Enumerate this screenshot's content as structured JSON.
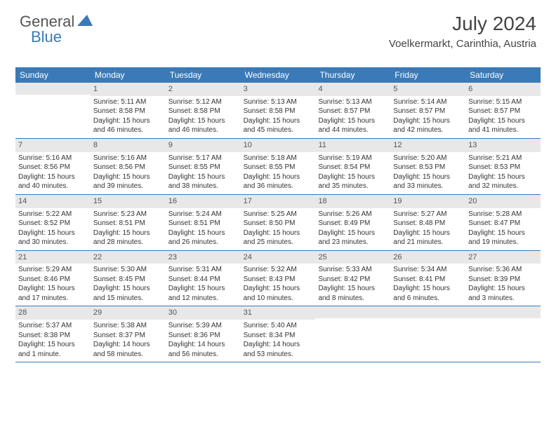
{
  "logo": {
    "text1": "General",
    "text2": "Blue"
  },
  "header": {
    "title": "July 2024",
    "location": "Voelkermarkt, Carinthia, Austria"
  },
  "colors": {
    "header_bar": "#3a7ab8",
    "header_text": "#ffffff",
    "daynum_bg": "#e8e8e8",
    "border": "#3a7ab8",
    "body_text": "#333333",
    "title_text": "#444444"
  },
  "weekdays": [
    "Sunday",
    "Monday",
    "Tuesday",
    "Wednesday",
    "Thursday",
    "Friday",
    "Saturday"
  ],
  "weeks": [
    [
      {
        "num": "",
        "sunrise": "",
        "sunset": "",
        "daylight": ""
      },
      {
        "num": "1",
        "sunrise": "Sunrise: 5:11 AM",
        "sunset": "Sunset: 8:58 PM",
        "daylight": "Daylight: 15 hours and 46 minutes."
      },
      {
        "num": "2",
        "sunrise": "Sunrise: 5:12 AM",
        "sunset": "Sunset: 8:58 PM",
        "daylight": "Daylight: 15 hours and 46 minutes."
      },
      {
        "num": "3",
        "sunrise": "Sunrise: 5:13 AM",
        "sunset": "Sunset: 8:58 PM",
        "daylight": "Daylight: 15 hours and 45 minutes."
      },
      {
        "num": "4",
        "sunrise": "Sunrise: 5:13 AM",
        "sunset": "Sunset: 8:57 PM",
        "daylight": "Daylight: 15 hours and 44 minutes."
      },
      {
        "num": "5",
        "sunrise": "Sunrise: 5:14 AM",
        "sunset": "Sunset: 8:57 PM",
        "daylight": "Daylight: 15 hours and 42 minutes."
      },
      {
        "num": "6",
        "sunrise": "Sunrise: 5:15 AM",
        "sunset": "Sunset: 8:57 PM",
        "daylight": "Daylight: 15 hours and 41 minutes."
      }
    ],
    [
      {
        "num": "7",
        "sunrise": "Sunrise: 5:16 AM",
        "sunset": "Sunset: 8:56 PM",
        "daylight": "Daylight: 15 hours and 40 minutes."
      },
      {
        "num": "8",
        "sunrise": "Sunrise: 5:16 AM",
        "sunset": "Sunset: 8:56 PM",
        "daylight": "Daylight: 15 hours and 39 minutes."
      },
      {
        "num": "9",
        "sunrise": "Sunrise: 5:17 AM",
        "sunset": "Sunset: 8:55 PM",
        "daylight": "Daylight: 15 hours and 38 minutes."
      },
      {
        "num": "10",
        "sunrise": "Sunrise: 5:18 AM",
        "sunset": "Sunset: 8:55 PM",
        "daylight": "Daylight: 15 hours and 36 minutes."
      },
      {
        "num": "11",
        "sunrise": "Sunrise: 5:19 AM",
        "sunset": "Sunset: 8:54 PM",
        "daylight": "Daylight: 15 hours and 35 minutes."
      },
      {
        "num": "12",
        "sunrise": "Sunrise: 5:20 AM",
        "sunset": "Sunset: 8:53 PM",
        "daylight": "Daylight: 15 hours and 33 minutes."
      },
      {
        "num": "13",
        "sunrise": "Sunrise: 5:21 AM",
        "sunset": "Sunset: 8:53 PM",
        "daylight": "Daylight: 15 hours and 32 minutes."
      }
    ],
    [
      {
        "num": "14",
        "sunrise": "Sunrise: 5:22 AM",
        "sunset": "Sunset: 8:52 PM",
        "daylight": "Daylight: 15 hours and 30 minutes."
      },
      {
        "num": "15",
        "sunrise": "Sunrise: 5:23 AM",
        "sunset": "Sunset: 8:51 PM",
        "daylight": "Daylight: 15 hours and 28 minutes."
      },
      {
        "num": "16",
        "sunrise": "Sunrise: 5:24 AM",
        "sunset": "Sunset: 8:51 PM",
        "daylight": "Daylight: 15 hours and 26 minutes."
      },
      {
        "num": "17",
        "sunrise": "Sunrise: 5:25 AM",
        "sunset": "Sunset: 8:50 PM",
        "daylight": "Daylight: 15 hours and 25 minutes."
      },
      {
        "num": "18",
        "sunrise": "Sunrise: 5:26 AM",
        "sunset": "Sunset: 8:49 PM",
        "daylight": "Daylight: 15 hours and 23 minutes."
      },
      {
        "num": "19",
        "sunrise": "Sunrise: 5:27 AM",
        "sunset": "Sunset: 8:48 PM",
        "daylight": "Daylight: 15 hours and 21 minutes."
      },
      {
        "num": "20",
        "sunrise": "Sunrise: 5:28 AM",
        "sunset": "Sunset: 8:47 PM",
        "daylight": "Daylight: 15 hours and 19 minutes."
      }
    ],
    [
      {
        "num": "21",
        "sunrise": "Sunrise: 5:29 AM",
        "sunset": "Sunset: 8:46 PM",
        "daylight": "Daylight: 15 hours and 17 minutes."
      },
      {
        "num": "22",
        "sunrise": "Sunrise: 5:30 AM",
        "sunset": "Sunset: 8:45 PM",
        "daylight": "Daylight: 15 hours and 15 minutes."
      },
      {
        "num": "23",
        "sunrise": "Sunrise: 5:31 AM",
        "sunset": "Sunset: 8:44 PM",
        "daylight": "Daylight: 15 hours and 12 minutes."
      },
      {
        "num": "24",
        "sunrise": "Sunrise: 5:32 AM",
        "sunset": "Sunset: 8:43 PM",
        "daylight": "Daylight: 15 hours and 10 minutes."
      },
      {
        "num": "25",
        "sunrise": "Sunrise: 5:33 AM",
        "sunset": "Sunset: 8:42 PM",
        "daylight": "Daylight: 15 hours and 8 minutes."
      },
      {
        "num": "26",
        "sunrise": "Sunrise: 5:34 AM",
        "sunset": "Sunset: 8:41 PM",
        "daylight": "Daylight: 15 hours and 6 minutes."
      },
      {
        "num": "27",
        "sunrise": "Sunrise: 5:36 AM",
        "sunset": "Sunset: 8:39 PM",
        "daylight": "Daylight: 15 hours and 3 minutes."
      }
    ],
    [
      {
        "num": "28",
        "sunrise": "Sunrise: 5:37 AM",
        "sunset": "Sunset: 8:38 PM",
        "daylight": "Daylight: 15 hours and 1 minute."
      },
      {
        "num": "29",
        "sunrise": "Sunrise: 5:38 AM",
        "sunset": "Sunset: 8:37 PM",
        "daylight": "Daylight: 14 hours and 58 minutes."
      },
      {
        "num": "30",
        "sunrise": "Sunrise: 5:39 AM",
        "sunset": "Sunset: 8:36 PM",
        "daylight": "Daylight: 14 hours and 56 minutes."
      },
      {
        "num": "31",
        "sunrise": "Sunrise: 5:40 AM",
        "sunset": "Sunset: 8:34 PM",
        "daylight": "Daylight: 14 hours and 53 minutes."
      },
      {
        "num": "",
        "sunrise": "",
        "sunset": "",
        "daylight": ""
      },
      {
        "num": "",
        "sunrise": "",
        "sunset": "",
        "daylight": ""
      },
      {
        "num": "",
        "sunrise": "",
        "sunset": "",
        "daylight": ""
      }
    ]
  ]
}
